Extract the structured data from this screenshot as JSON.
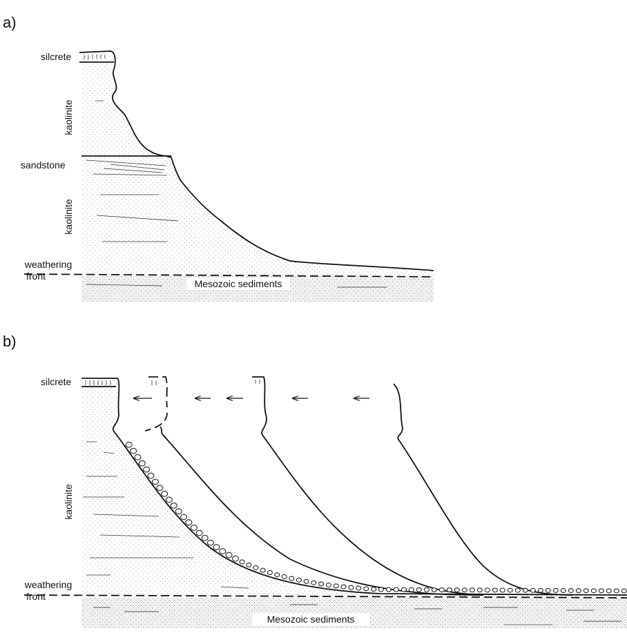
{
  "panels": [
    {
      "label": "a)",
      "silcrete": "silcrete",
      "kaolinite_upper": "kaolinite",
      "sandstone": "sandstone",
      "kaolinite_lower": "kaolinite",
      "weathering_front": [
        "weathering",
        "front"
      ],
      "sediments": "Mesozoic sediments"
    },
    {
      "label": "b)",
      "silcrete": "silcrete",
      "kaolinite": "kaolinite",
      "weathering_front": [
        "weathering",
        "front"
      ],
      "sediments": "Mesozoic sediments"
    }
  ]
}
